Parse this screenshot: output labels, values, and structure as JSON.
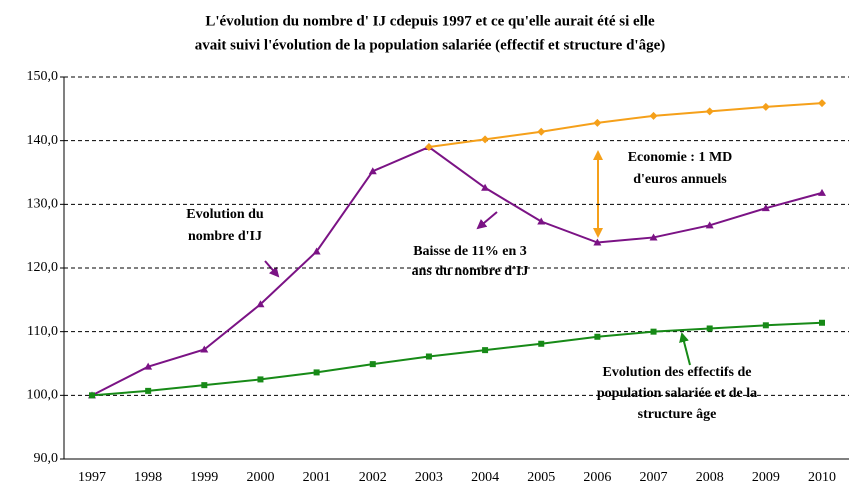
{
  "chart_data": {
    "type": "line",
    "title": [
      "L'évolution du nombre d' IJ cdepuis 1997 et ce qu'elle aurait été si elle",
      "avait suivi l'évolution de la population salariée (effectif et structure d'âge)"
    ],
    "categories": [
      "1997",
      "1998",
      "1999",
      "2000",
      "2001",
      "2002",
      "2003",
      "2004",
      "2005",
      "2006",
      "2007",
      "2008",
      "2009",
      "2010"
    ],
    "series": [
      {
        "color": "#7b1385",
        "marker": "triangle",
        "values": [
          100,
          104.5,
          107.2,
          114.3,
          122.6,
          135.2,
          139.0,
          132.6,
          127.3,
          124.0,
          124.8,
          126.7,
          129.4,
          131.8
        ]
      },
      {
        "color": "#f5a01a",
        "marker": "diamond",
        "values": [
          null,
          null,
          null,
          null,
          null,
          null,
          139.0,
          140.2,
          141.4,
          142.8,
          143.9,
          144.6,
          145.3,
          145.9
        ]
      },
      {
        "color": "#178a17",
        "marker": "square",
        "values": [
          100,
          100.7,
          101.6,
          102.5,
          103.6,
          104.9,
          106.1,
          107.1,
          108.1,
          109.2,
          110.0,
          110.5,
          111.0,
          111.4
        ]
      }
    ],
    "ylim": [
      90,
      150
    ],
    "yticks": [
      {
        "value": 90,
        "label": "90,0"
      },
      {
        "value": 100,
        "label": "100,0"
      },
      {
        "value": 110,
        "label": "110,0"
      },
      {
        "value": 120,
        "label": "120,0"
      },
      {
        "value": 130,
        "label": "130,0"
      },
      {
        "value": 140,
        "label": "140,0"
      },
      {
        "value": 150,
        "label": "150,0"
      }
    ],
    "grid": true,
    "annotations": [
      {
        "lines": [
          "Evolution du",
          "nombre d'IJ"
        ]
      },
      {
        "lines": [
          "Baisse de 11% en 3",
          "ans du nombre d'IJ"
        ]
      },
      {
        "lines": [
          "Economie : 1 MD",
          "d'euros annuels"
        ]
      },
      {
        "lines": [
          "Evolution des effectifs de",
          "population salariée et de la",
          "structure âge"
        ]
      }
    ]
  }
}
